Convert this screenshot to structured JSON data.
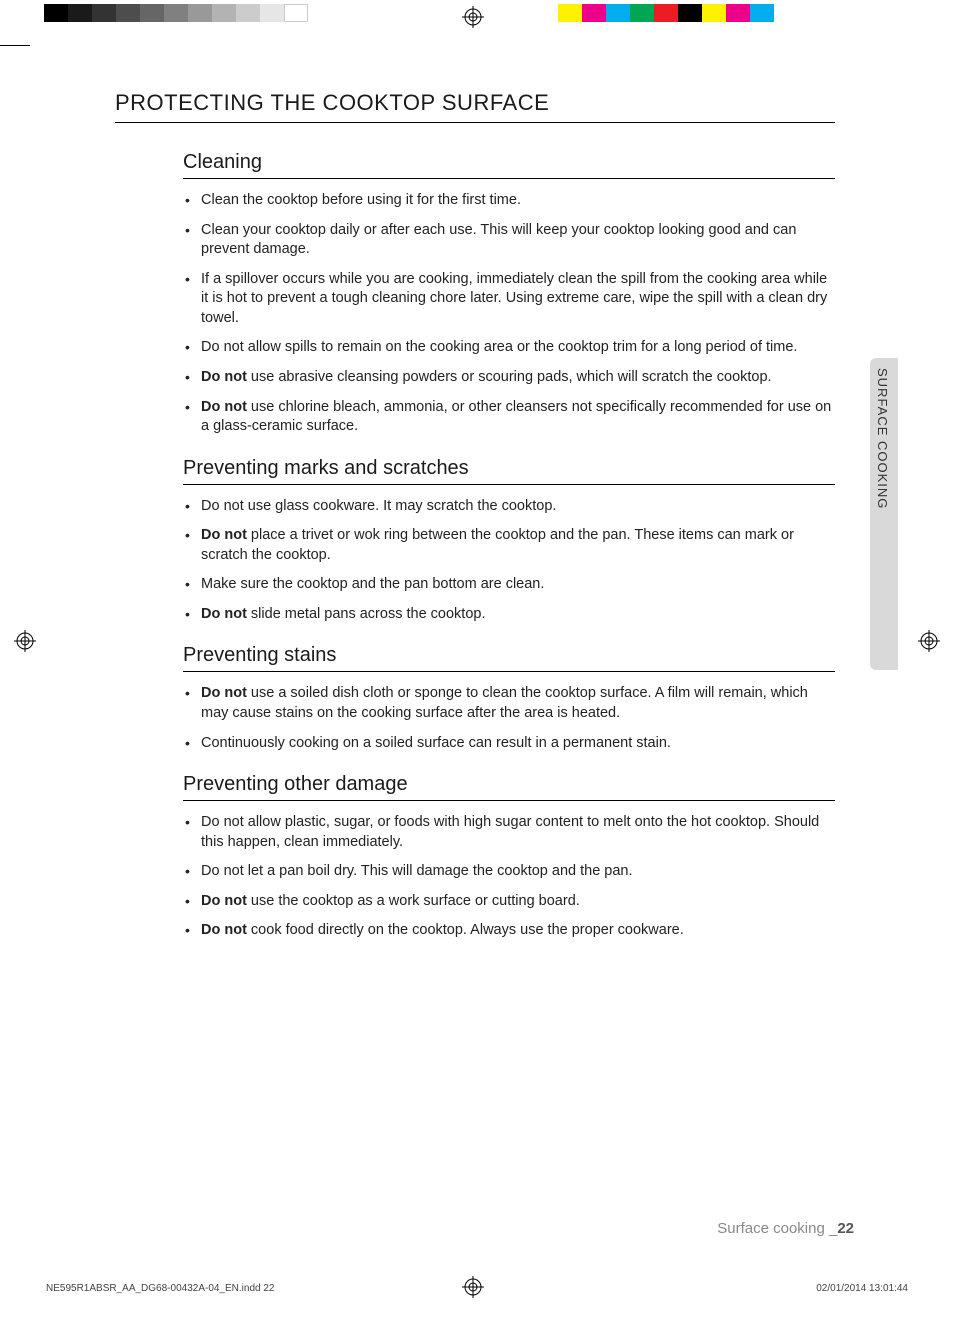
{
  "colorbars": {
    "grays": [
      "#000000",
      "#1a1a1a",
      "#333333",
      "#4d4d4d",
      "#666666",
      "#808080",
      "#999999",
      "#b3b3b3",
      "#cccccc",
      "#e6e6e6",
      "#ffffff"
    ],
    "colors": [
      "#fff200",
      "#ec008c",
      "#00aeef",
      "#00a651",
      "#ed1c24",
      "#000000",
      "#fff200",
      "#ec008c",
      "#00aeef"
    ]
  },
  "heading": "PROTECTING THE COOKTOP SURFACE",
  "sideTab": "SURFACE COOKING",
  "sections": [
    {
      "title": "Cleaning",
      "items": [
        [
          {
            "t": "Clean the cooktop before using it for the first time."
          }
        ],
        [
          {
            "t": "Clean your cooktop daily or after each use. This will keep your cooktop looking good and can prevent damage."
          }
        ],
        [
          {
            "t": "If a spillover occurs while you are cooking, immediately clean the spill from the cooking area while it is hot to prevent a tough cleaning chore later. Using extreme care, wipe the spill with a clean dry towel."
          }
        ],
        [
          {
            "t": "Do not allow spills to remain on the cooking area or the cooktop trim for a long period of time."
          }
        ],
        [
          {
            "b": "Do not"
          },
          {
            "t": " use abrasive cleansing powders or scouring pads, which will scratch the cooktop."
          }
        ],
        [
          {
            "b": "Do not"
          },
          {
            "t": " use chlorine bleach, ammonia, or other cleansers not specifically recommended for use on a glass-ceramic surface."
          }
        ]
      ]
    },
    {
      "title": "Preventing marks and scratches",
      "items": [
        [
          {
            "t": "Do not use glass cookware. It may scratch the cooktop."
          }
        ],
        [
          {
            "b": "Do not"
          },
          {
            "t": " place a trivet or wok ring between the cooktop and the pan. These items can mark or scratch the cooktop."
          }
        ],
        [
          {
            "t": "Make sure the cooktop and the pan bottom are clean."
          }
        ],
        [
          {
            "b": "Do not"
          },
          {
            "t": " slide metal pans across the cooktop."
          }
        ]
      ]
    },
    {
      "title": "Preventing stains",
      "items": [
        [
          {
            "b": "Do not"
          },
          {
            "t": " use a soiled dish cloth or sponge to clean the cooktop surface. A film will remain, which may cause stains on the cooking surface after the area is heated."
          }
        ],
        [
          {
            "t": "Continuously cooking on a soiled surface can result in a permanent stain."
          }
        ]
      ]
    },
    {
      "title": "Preventing other damage",
      "items": [
        [
          {
            "t": "Do not allow plastic, sugar, or foods with high sugar content to melt onto the hot cooktop. Should this happen, clean immediately."
          }
        ],
        [
          {
            "t": "Do not let a pan boil dry. This will damage the cooktop and the pan."
          }
        ],
        [
          {
            "b": "Do not"
          },
          {
            "t": " use the cooktop as a work surface or cutting board."
          }
        ],
        [
          {
            "b": "Do not"
          },
          {
            "t": " cook food directly on the cooktop. Always use the proper cookware."
          }
        ]
      ]
    }
  ],
  "footer": {
    "sectionLabel": "Surface cooking _",
    "pageNumber": "22",
    "file": "NE595R1ABSR_AA_DG68-00432A-04_EN.indd   22",
    "timestamp": "02/01/2014   13:01:44"
  }
}
